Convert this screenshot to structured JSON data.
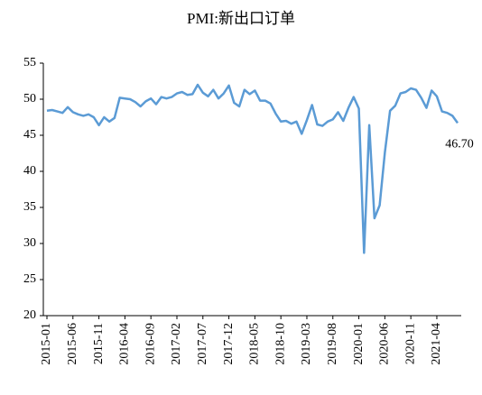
{
  "chart_data": {
    "type": "line",
    "title": "PMI:新出口订单",
    "categories": [
      "2015-01",
      null,
      null,
      null,
      null,
      "2015-06",
      null,
      null,
      null,
      null,
      "2015-11",
      null,
      null,
      null,
      null,
      "2016-04",
      null,
      null,
      null,
      null,
      "2016-09",
      null,
      null,
      null,
      null,
      "2017-02",
      null,
      null,
      null,
      null,
      "2017-07",
      null,
      null,
      null,
      null,
      "2017-12",
      null,
      null,
      null,
      null,
      "2018-05",
      null,
      null,
      null,
      null,
      "2018-10",
      null,
      null,
      null,
      null,
      "2019-03",
      null,
      null,
      null,
      null,
      "2019-08",
      null,
      null,
      null,
      null,
      "2020-01",
      null,
      null,
      null,
      null,
      "2020-06",
      null,
      null,
      null,
      null,
      "2020-11",
      null,
      null,
      null,
      null,
      "2021-04",
      null,
      null,
      null,
      null
    ],
    "series": [
      {
        "name": "PMI:新出口订单",
        "color": "#5b9bd5",
        "values": [
          48.4,
          48.5,
          48.3,
          48.1,
          48.9,
          48.2,
          47.9,
          47.7,
          47.9,
          47.5,
          46.4,
          47.5,
          46.9,
          47.4,
          50.2,
          50.1,
          50.0,
          49.6,
          49.0,
          49.7,
          50.1,
          49.3,
          50.3,
          50.1,
          50.3,
          50.8,
          51.0,
          50.6,
          50.7,
          52.0,
          50.9,
          50.4,
          51.3,
          50.1,
          50.8,
          51.9,
          49.5,
          49.0,
          51.3,
          50.7,
          51.2,
          49.8,
          49.8,
          49.4,
          48.0,
          46.9,
          47.0,
          46.6,
          46.9,
          45.2,
          47.1,
          49.2,
          46.5,
          46.3,
          46.9,
          47.2,
          48.2,
          47.0,
          48.8,
          50.3,
          48.7,
          28.7,
          46.4,
          33.5,
          35.3,
          42.6,
          48.4,
          49.1,
          50.8,
          51.0,
          51.5,
          51.3,
          50.2,
          48.8,
          51.2,
          50.4,
          48.3,
          48.1,
          47.7,
          46.7
        ]
      }
    ],
    "annotation": "46.70",
    "ylim": [
      20,
      55
    ],
    "yticks": [
      20,
      25,
      30,
      35,
      40,
      45,
      50,
      55
    ],
    "grid": false
  }
}
